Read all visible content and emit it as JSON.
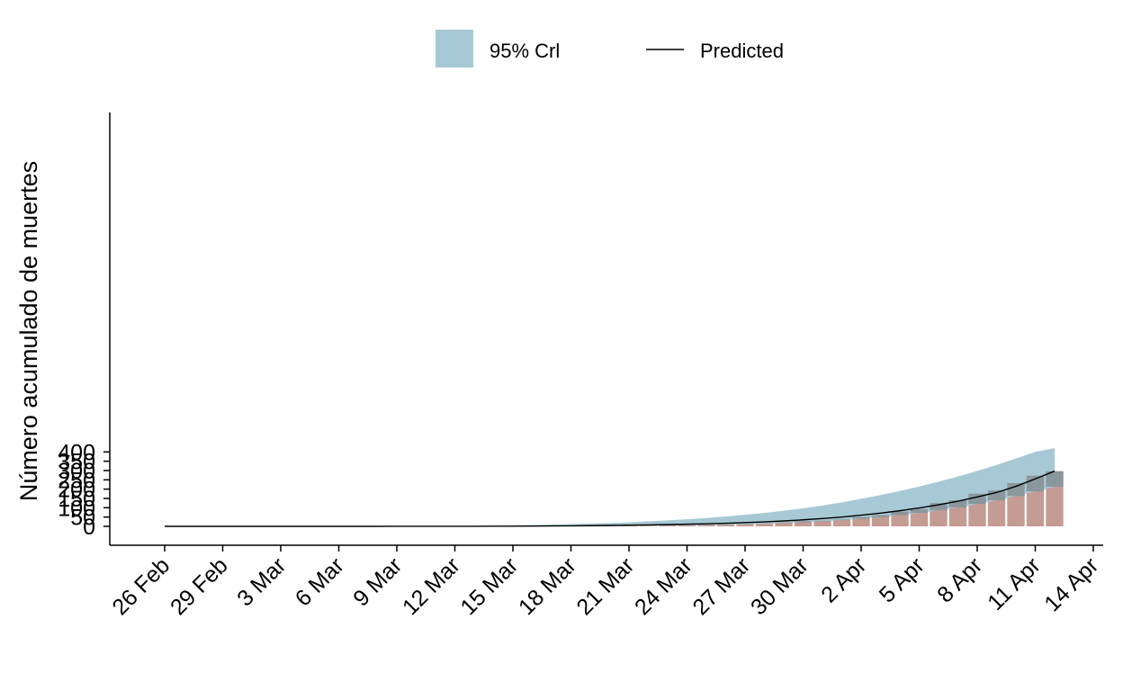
{
  "chart_data": {
    "type": "bar",
    "ylabel": "Número acumulado de muertes",
    "xlabel": "",
    "ylim": [
      0,
      440
    ],
    "yticks": [
      0,
      50,
      100,
      150,
      200,
      250,
      300,
      350,
      400
    ],
    "x_start": "26 Feb",
    "x_end": "14 Apr",
    "xtick_labels": [
      "26 Feb",
      "29 Feb",
      "3 Mar",
      "6 Mar",
      "9 Mar",
      "12 Mar",
      "15 Mar",
      "18 Mar",
      "21 Mar",
      "24 Mar",
      "27 Mar",
      "30 Mar",
      "2 Apr",
      "5 Apr",
      "8 Apr",
      "11 Apr",
      "14 Apr"
    ],
    "legend_position": "top",
    "legend": {
      "band_label": "95% Crl",
      "line_label": "Predicted"
    },
    "colors": {
      "bars": "#c49c93",
      "band": "#a7c9d6",
      "band_overlap_bars": "#8a979c",
      "line": "#000000"
    },
    "observed_deaths": [
      0,
      0,
      0,
      0,
      0,
      0,
      0,
      0,
      0,
      0,
      0,
      0,
      0,
      0,
      0,
      0,
      0,
      1,
      1,
      1,
      1,
      1,
      2,
      2,
      3,
      3,
      5,
      6,
      8,
      10,
      12,
      15,
      20,
      28,
      30,
      37,
      50,
      60,
      79,
      93,
      125,
      140,
      175,
      193,
      233,
      272,
      296
    ],
    "predicted": [
      0,
      0,
      0,
      0,
      0,
      0,
      0,
      0,
      0,
      0,
      0,
      0,
      0.1,
      0.2,
      0.2,
      0.3,
      0.5,
      0.8,
      1.0,
      1.5,
      2.0,
      2.7,
      3.6,
      4.8,
      6.2,
      7.8,
      9.6,
      11.5,
      13.8,
      16.4,
      20,
      24,
      29,
      35,
      42,
      50,
      60,
      71,
      84,
      99,
      116,
      135,
      158,
      182,
      215,
      255,
      297
    ],
    "ci_lower": [
      0,
      0,
      0,
      0,
      0,
      0,
      0,
      0,
      0,
      0,
      0,
      0,
      0,
      0,
      0,
      0,
      0,
      0.2,
      0.3,
      0.5,
      0.8,
      1.0,
      1.5,
      2.0,
      2.7,
      3.5,
      4.5,
      5.6,
      7.0,
      8.8,
      11,
      14,
      18,
      22,
      27,
      33,
      41,
      50,
      60,
      72,
      86,
      102,
      120,
      140,
      163,
      188,
      213
    ],
    "ci_upper": [
      0,
      0,
      0,
      0,
      0,
      0,
      0,
      0,
      0,
      0,
      0,
      0,
      0.3,
      0.6,
      1.0,
      1.5,
      2.5,
      3.5,
      5.0,
      7.0,
      9.5,
      12,
      15,
      18,
      22,
      27,
      32,
      38,
      45,
      53,
      62,
      72,
      84,
      97,
      112,
      129,
      148,
      168,
      190,
      214,
      240,
      268,
      298,
      330,
      365,
      400,
      420
    ]
  }
}
